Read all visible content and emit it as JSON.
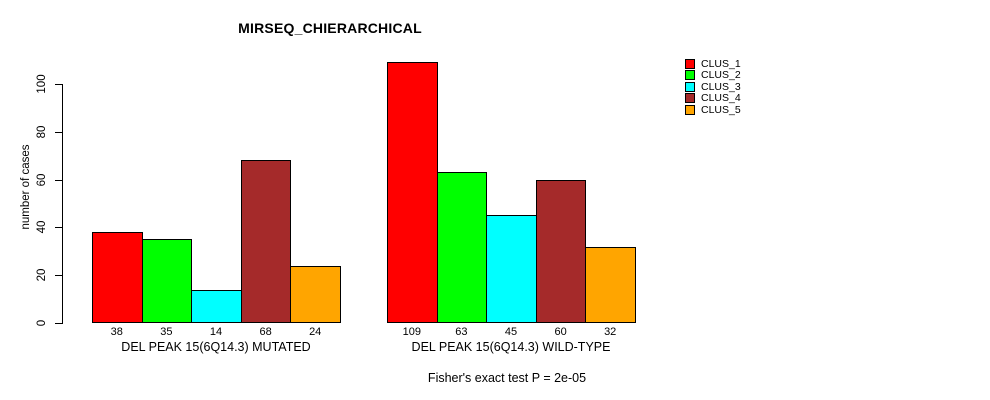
{
  "title": "MIRSEQ_CHIERARCHICAL",
  "footnote": "Fisher's exact test P = 2e-05",
  "chart_data": {
    "type": "bar",
    "grouped": true,
    "title": "MIRSEQ_CHIERARCHICAL",
    "xlabel": "",
    "ylabel": "number of cases",
    "categories": [
      "DEL PEAK 15(6Q14.3) MUTATED",
      "DEL PEAK 15(6Q14.3) WILD-TYPE"
    ],
    "series": [
      {
        "name": "CLUS_1",
        "color": "#ff0000",
        "values": [
          38,
          109
        ]
      },
      {
        "name": "CLUS_2",
        "color": "#00ff00",
        "values": [
          35,
          63
        ]
      },
      {
        "name": "CLUS_3",
        "color": "#00ffff",
        "values": [
          14,
          45
        ]
      },
      {
        "name": "CLUS_4",
        "color": "#a52a2a",
        "values": [
          68,
          60
        ]
      },
      {
        "name": "CLUS_5",
        "color": "#ffa500",
        "values": [
          24,
          32
        ]
      }
    ],
    "bar_value_labels": {
      "DEL PEAK 15(6Q14.3) MUTATED": [
        38,
        35,
        14,
        68,
        24
      ],
      "DEL PEAK 15(6Q14.3) WILD-TYPE": [
        109,
        63,
        45,
        60,
        32
      ]
    },
    "yticks": [
      0,
      20,
      40,
      60,
      80,
      100
    ],
    "ylim": [
      0,
      109
    ],
    "grid": false,
    "legend_position": "right",
    "annotation": "Fisher's exact test P = 2e-05",
    "bar_edge_color": "#000000",
    "background_color": "#ffffff"
  }
}
